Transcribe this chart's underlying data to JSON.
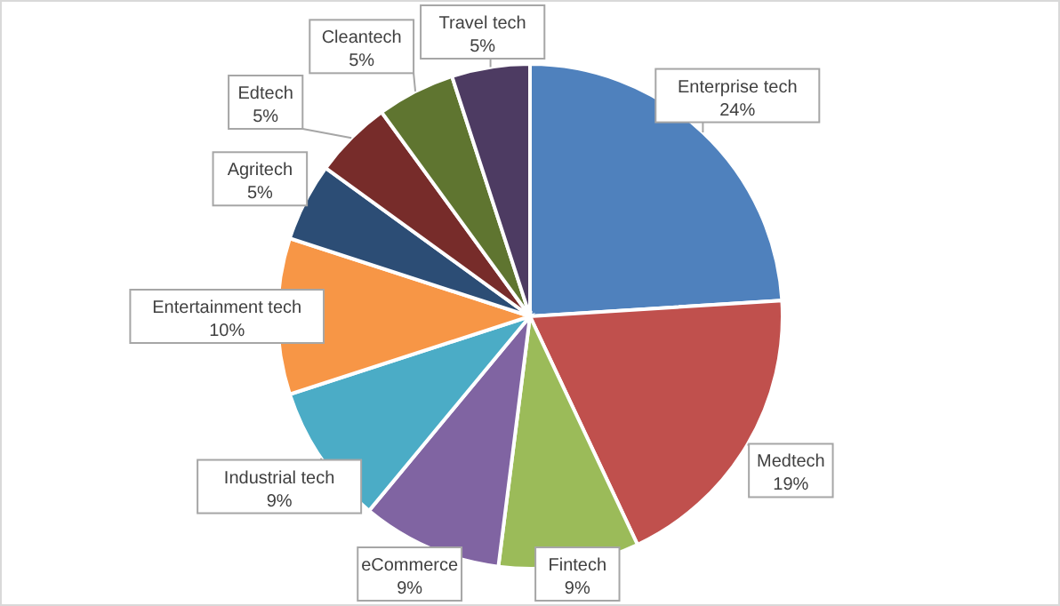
{
  "chart_data": {
    "type": "pie",
    "categories": [
      "Enterprise tech",
      "Medtech",
      "Fintech",
      "eCommerce",
      "Industrial tech",
      "Entertainment tech",
      "Agritech",
      "Edtech",
      "Cleantech",
      "Travel tech"
    ],
    "values": [
      24,
      19,
      9,
      9,
      9,
      10,
      5,
      5,
      5,
      5
    ],
    "value_labels": [
      "24%",
      "19%",
      "9%",
      "9%",
      "9%",
      "10%",
      "5%",
      "5%",
      "5%",
      "5%"
    ],
    "colors": [
      "#4f81bd",
      "#c0504d",
      "#9bbb59",
      "#8064a2",
      "#4bacc6",
      "#f79646",
      "#2c4d75",
      "#772c2a",
      "#5f7530",
      "#4d3b62"
    ]
  }
}
